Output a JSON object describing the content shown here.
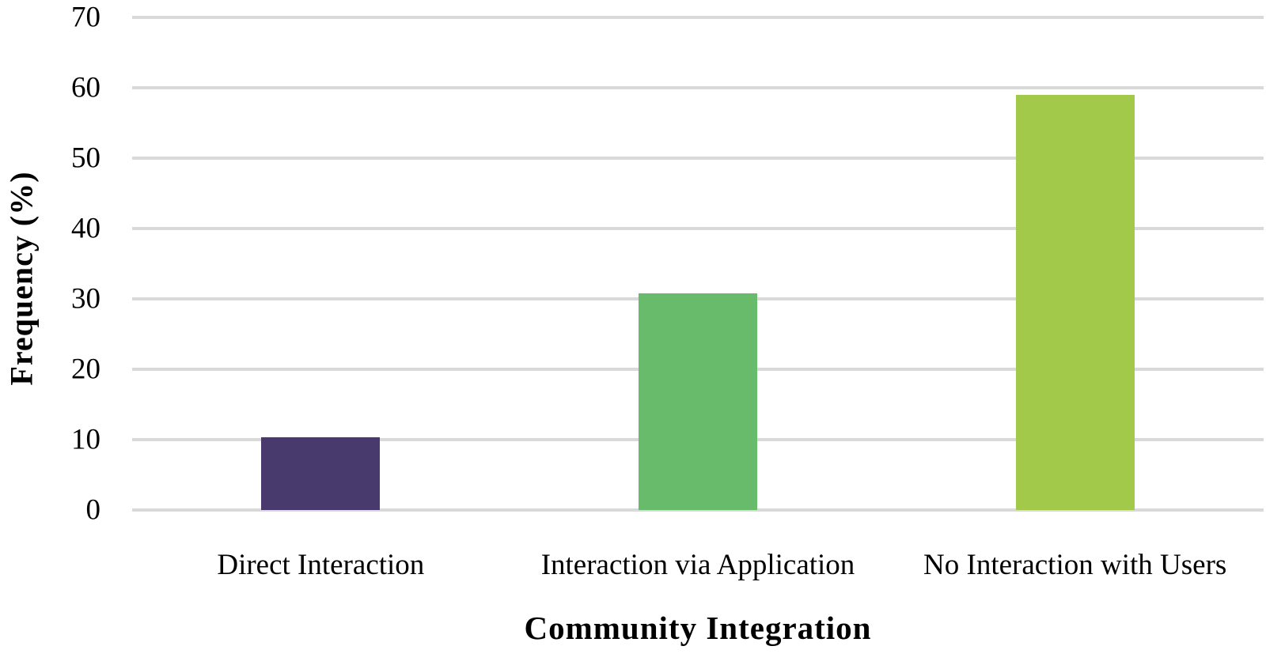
{
  "chart_data": {
    "type": "bar",
    "title": "",
    "xlabel": "Community Integration",
    "ylabel": "Frequency (%)",
    "categories": [
      "Direct Interaction",
      "Interaction via Application",
      "No Interaction with Users"
    ],
    "values": [
      10.3,
      30.8,
      59
    ],
    "bar_colors": [
      "#483A6D",
      "#67BB6A",
      "#A3C94A"
    ],
    "ylim": [
      0,
      70
    ],
    "yticks": [
      0,
      10,
      20,
      30,
      40,
      50,
      60,
      70
    ],
    "grid": "horizontal",
    "gridline_color": "#D9D9D9",
    "legend": "none",
    "background_color": "#FFFFFF"
  }
}
